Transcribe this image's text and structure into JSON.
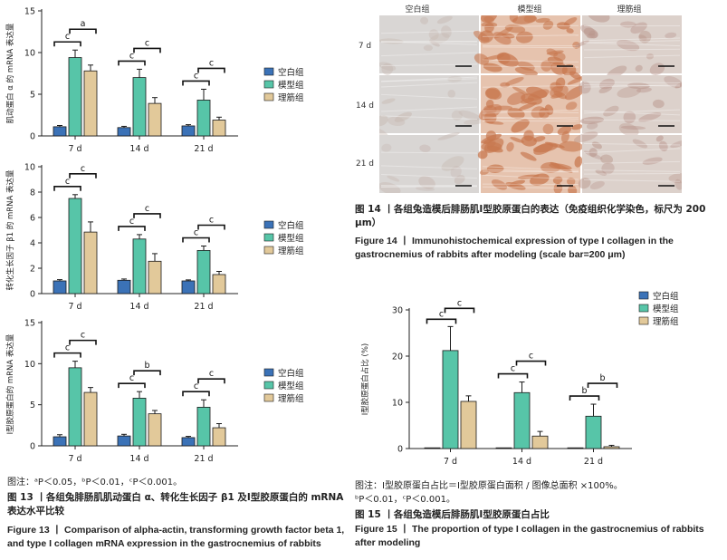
{
  "legend": [
    "空白组",
    "模型组",
    "理筋组"
  ],
  "colors": {
    "blank": "#3B72B7",
    "model": "#57C5A8",
    "treat": "#E2C99A"
  },
  "fig13": {
    "note": "图注：ᵃP＜0.05，ᵇP＜0.01，ᶜP＜0.001。",
    "title_cn": "图 13 丨各组兔腓肠肌肌动蛋白 α、转化生长因子 β1 及Ⅰ型胶原蛋白的 mRNA 表达水平比较",
    "title_en": "Figure 13 丨 Comparison of alpha-actin, transforming growth factor beta 1, and type I collagen mRNA expression in the gastrocnemius of rabbits"
  },
  "fig14": {
    "col_labels": [
      "空白组",
      "模型组",
      "理筋组"
    ],
    "row_labels": [
      "7 d",
      "14 d",
      "21 d"
    ],
    "title_cn": "图 14 丨各组兔造模后腓肠肌Ⅰ型胶原蛋白的表达（免疫组织化学染色，标尺为 200 μm）",
    "title_en": "Figure 14 丨 Immunohistochemical expression of type I collagen in the gastrocnemius of rabbits after modeling (scale bar=200 μm)"
  },
  "fig15": {
    "note1": "图注：Ⅰ型胶原蛋白占比＝Ⅰ型胶原蛋白面积 / 图像总面积 ×100%。",
    "note2": "ᵇP＜0.01，ᶜP＜0.001。",
    "title_cn": "图 15 丨各组兔造模后腓肠肌Ⅰ型胶原蛋白占比",
    "title_en": "Figure 15 丨 The proportion of type I collagen in the gastrocnemius of rabbits after modeling"
  },
  "chart_data": [
    {
      "type": "bar",
      "id": "c1",
      "ylabel": "肌动蛋白 α 的 mRNA 表达量",
      "categories": [
        "7 d",
        "14 d",
        "21 d"
      ],
      "yticks": [
        0,
        5,
        10,
        15
      ],
      "ylim": [
        0,
        15
      ],
      "series": [
        {
          "name": "空白组",
          "values": [
            1.1,
            1.0,
            1.2
          ],
          "errors": [
            0.15,
            0.15,
            0.15
          ]
        },
        {
          "name": "模型组",
          "values": [
            9.4,
            7.0,
            4.3
          ],
          "errors": [
            0.9,
            1.0,
            1.3
          ]
        },
        {
          "name": "理筋组",
          "values": [
            7.8,
            3.9,
            1.9
          ],
          "errors": [
            0.7,
            0.7,
            0.35
          ]
        }
      ],
      "significance": [
        {
          "group": 0,
          "from": 0,
          "to": 1,
          "label": "c",
          "level": 0
        },
        {
          "group": 0,
          "from": 1,
          "to": 2,
          "label": "a",
          "level": 1
        },
        {
          "group": 1,
          "from": 0,
          "to": 1,
          "label": "c",
          "level": 0
        },
        {
          "group": 1,
          "from": 1,
          "to": 2,
          "label": "c",
          "level": 1
        },
        {
          "group": 2,
          "from": 0,
          "to": 1,
          "label": "c",
          "level": 0
        },
        {
          "group": 2,
          "from": 1,
          "to": 2,
          "label": "c",
          "level": 1
        }
      ]
    },
    {
      "type": "bar",
      "id": "c2",
      "ylabel": "转化生长因子 β1 的 mRNA 表达量",
      "categories": [
        "7 d",
        "14 d",
        "21 d"
      ],
      "yticks": [
        0,
        2,
        4,
        6,
        8,
        10
      ],
      "ylim": [
        0,
        10
      ],
      "series": [
        {
          "name": "空白组",
          "values": [
            1.0,
            1.05,
            1.0
          ],
          "errors": [
            0.1,
            0.1,
            0.08
          ]
        },
        {
          "name": "模型组",
          "values": [
            7.5,
            4.3,
            3.4
          ],
          "errors": [
            0.3,
            0.35,
            0.35
          ]
        },
        {
          "name": "理筋组",
          "values": [
            4.85,
            2.55,
            1.5
          ],
          "errors": [
            0.8,
            0.6,
            0.25
          ]
        }
      ],
      "significance": [
        {
          "group": 0,
          "from": 0,
          "to": 1,
          "label": "c",
          "level": 0
        },
        {
          "group": 0,
          "from": 1,
          "to": 2,
          "label": "c",
          "level": 1
        },
        {
          "group": 1,
          "from": 0,
          "to": 1,
          "label": "c",
          "level": 0
        },
        {
          "group": 1,
          "from": 1,
          "to": 2,
          "label": "c",
          "level": 1
        },
        {
          "group": 2,
          "from": 0,
          "to": 1,
          "label": "c",
          "level": 0
        },
        {
          "group": 2,
          "from": 1,
          "to": 2,
          "label": "c",
          "level": 1
        }
      ]
    },
    {
      "type": "bar",
      "id": "c3",
      "ylabel": "Ⅰ型胶原蛋白的 mRNA 表达量",
      "categories": [
        "7 d",
        "14 d",
        "21 d"
      ],
      "yticks": [
        0,
        5,
        10,
        15
      ],
      "ylim": [
        0,
        15
      ],
      "series": [
        {
          "name": "空白组",
          "values": [
            1.1,
            1.2,
            1.0
          ],
          "errors": [
            0.25,
            0.2,
            0.15
          ]
        },
        {
          "name": "模型组",
          "values": [
            9.5,
            5.8,
            4.7
          ],
          "errors": [
            0.8,
            0.8,
            0.9
          ]
        },
        {
          "name": "理筋组",
          "values": [
            6.5,
            3.9,
            2.2
          ],
          "errors": [
            0.6,
            0.4,
            0.5
          ]
        }
      ],
      "significance": [
        {
          "group": 0,
          "from": 0,
          "to": 1,
          "label": "c",
          "level": 0
        },
        {
          "group": 0,
          "from": 1,
          "to": 2,
          "label": "c",
          "level": 1
        },
        {
          "group": 1,
          "from": 0,
          "to": 1,
          "label": "c",
          "level": 0
        },
        {
          "group": 1,
          "from": 1,
          "to": 2,
          "label": "b",
          "level": 1
        },
        {
          "group": 2,
          "from": 0,
          "to": 1,
          "label": "c",
          "level": 0
        },
        {
          "group": 2,
          "from": 1,
          "to": 2,
          "label": "c",
          "level": 1
        }
      ]
    },
    {
      "type": "bar",
      "id": "c4",
      "ylabel": "Ⅰ型胶原蛋白占比 (%)",
      "categories": [
        "7 d",
        "14 d",
        "21 d"
      ],
      "yticks": [
        0,
        10,
        20,
        30
      ],
      "ylim": [
        0,
        30
      ],
      "series": [
        {
          "name": "空白组",
          "values": [
            0.0,
            0.0,
            0.0
          ],
          "errors": [
            0,
            0,
            0
          ]
        },
        {
          "name": "模型组",
          "values": [
            21.2,
            12.1,
            7.0
          ],
          "errors": [
            5.2,
            2.3,
            2.6
          ]
        },
        {
          "name": "理筋组",
          "values": [
            10.2,
            2.7,
            0.4
          ],
          "errors": [
            1.2,
            1.0,
            0.3
          ]
        }
      ],
      "significance": [
        {
          "group": 0,
          "from": 0,
          "to": 1,
          "label": "c",
          "level": 0
        },
        {
          "group": 0,
          "from": 1,
          "to": 2,
          "label": "c",
          "level": 1
        },
        {
          "group": 1,
          "from": 0,
          "to": 1,
          "label": "c",
          "level": 0
        },
        {
          "group": 1,
          "from": 1,
          "to": 2,
          "label": "c",
          "level": 1
        },
        {
          "group": 2,
          "from": 0,
          "to": 1,
          "label": "b",
          "level": 0
        },
        {
          "group": 2,
          "from": 1,
          "to": 2,
          "label": "b",
          "level": 1
        }
      ]
    }
  ]
}
